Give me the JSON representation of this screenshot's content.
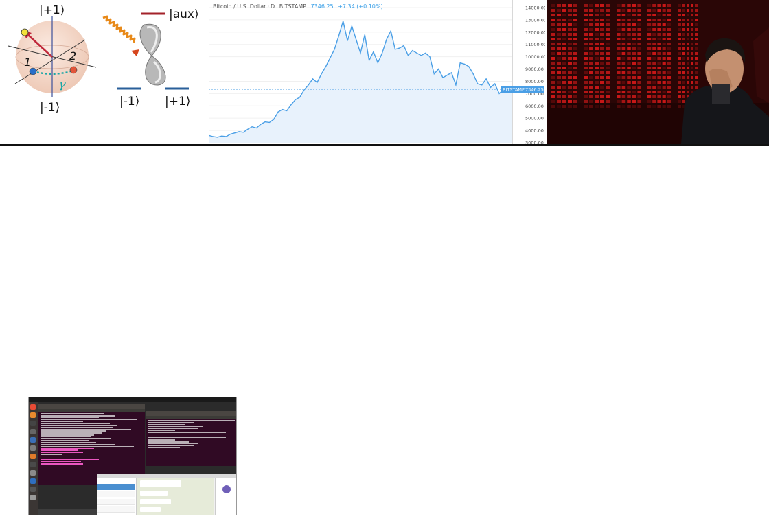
{
  "quantum_diagram": {
    "label_top": "|+1⟩",
    "label_bottom": "|-1⟩",
    "label_one": "1",
    "label_two": "2",
    "label_gamma": "γ",
    "label_aux": "|aux⟩",
    "label_minus_one": "|-1⟩",
    "label_plus_one": "|+1⟩",
    "colors": {
      "arrow": "#c0283a",
      "sphere": "#f3d7c8",
      "path": "#1aa6a6",
      "aux_line": "#a3222a",
      "level_line": "#2a5f9a"
    }
  },
  "bitcoin_chart": {
    "pair": "Bitcoin / U.S. Dollar",
    "interval": "D",
    "exchange": "BITSTAMP",
    "last_price": "7346.25",
    "change": "+7.34 (+0.10%)",
    "price_tag_label": "BITSTAMP",
    "price_tag_value": "7346.25",
    "line_color": "#4a9fe6",
    "chart_data": {
      "type": "area",
      "title": "Bitcoin / U.S. Dollar · D · BITSTAMP",
      "y_ticks": [
        "14000.00",
        "13000.00",
        "12000.00",
        "11000.00",
        "10000.00",
        "9000.00",
        "8000.00",
        "7000.00",
        "6000.00",
        "5000.00",
        "4000.00",
        "3000.00"
      ],
      "ylim": [
        3000,
        14000
      ],
      "y_values": [
        3600,
        3500,
        3450,
        3550,
        3500,
        3700,
        3800,
        3900,
        3850,
        4100,
        4300,
        4200,
        4500,
        4700,
        4650,
        4900,
        5500,
        5700,
        5600,
        6100,
        6500,
        6700,
        7300,
        7700,
        8200,
        7900,
        8600,
        9200,
        9900,
        10600,
        11700,
        12900,
        11300,
        12500,
        11400,
        10300,
        11800,
        9700,
        10400,
        9500,
        10300,
        11400,
        12100,
        10600,
        10700,
        10900,
        10100,
        10500,
        10300,
        10100,
        10300,
        10000,
        8600,
        9000,
        8300,
        8500,
        8700,
        7700,
        9500,
        9400,
        9200,
        8600,
        7800,
        7700,
        8200,
        7500,
        7800,
        7000,
        7350,
        7400,
        7346.25
      ],
      "last_value": 7346.25
    }
  },
  "photo": {
    "colors": {
      "screen": "#d81a1a",
      "dark": "#2a0606"
    }
  },
  "desktop_screenshot": {
    "colors": {
      "terminal": "#300a24",
      "dock": "#3b3634",
      "chat_bg": "#e6ebd9"
    }
  }
}
